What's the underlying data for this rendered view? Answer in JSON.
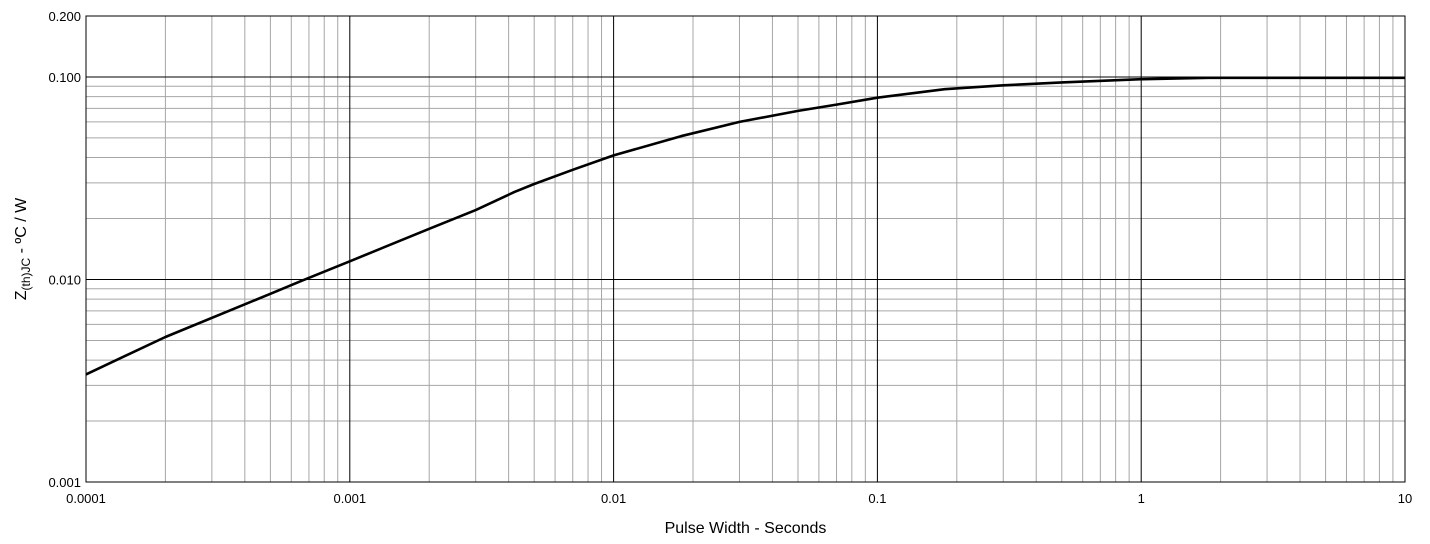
{
  "chart_data": {
    "type": "line",
    "title": "",
    "xlabel": "Pulse Width - Seconds",
    "ylabel": {
      "main": "Z",
      "subscript": "(th)JC",
      "suffix": " - ºC / W"
    },
    "x_scale": "log",
    "y_scale": "log",
    "xlim": [
      0.0001,
      10
    ],
    "ylim": [
      0.001,
      0.2
    ],
    "x_ticks": [
      {
        "value": 0.0001,
        "label": "0.0001"
      },
      {
        "value": 0.001,
        "label": "0.001"
      },
      {
        "value": 0.01,
        "label": "0.01"
      },
      {
        "value": 0.1,
        "label": "0.1"
      },
      {
        "value": 1,
        "label": "1"
      },
      {
        "value": 10,
        "label": "10"
      }
    ],
    "y_ticks": [
      {
        "value": 0.001,
        "label": "0.001"
      },
      {
        "value": 0.01,
        "label": "0.010"
      },
      {
        "value": 0.1,
        "label": "0.100"
      },
      {
        "value": 0.2,
        "label": "0.200"
      }
    ],
    "grid": true,
    "legend": "none",
    "line_color": "#000000",
    "series": [
      {
        "x": [
          0.0001,
          0.0002,
          0.0005,
          0.00065,
          0.001,
          0.002,
          0.003,
          0.0042,
          0.005,
          0.007,
          0.01,
          0.018,
          0.03,
          0.05,
          0.07,
          0.1,
          0.18,
          0.3,
          0.5,
          1,
          1.8,
          3,
          5,
          10
        ],
        "y": [
          0.0034,
          0.0052,
          0.0085,
          0.0098,
          0.0123,
          0.0178,
          0.022,
          0.027,
          0.0296,
          0.0348,
          0.041,
          0.051,
          0.06,
          0.068,
          0.073,
          0.079,
          0.087,
          0.091,
          0.094,
          0.0975,
          0.099,
          0.099,
          0.099,
          0.099
        ]
      }
    ]
  }
}
